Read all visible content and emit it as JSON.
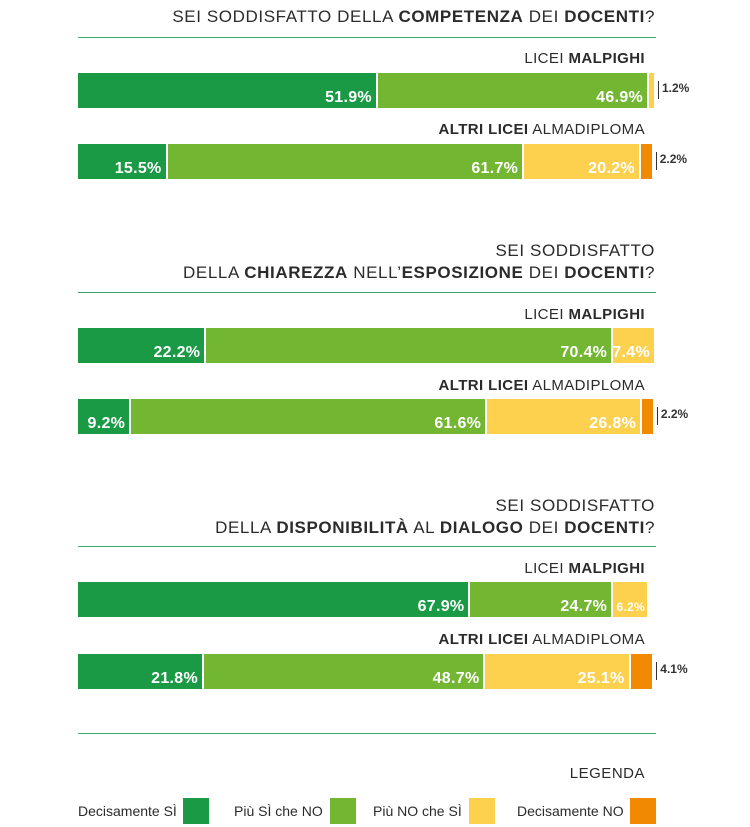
{
  "colors": {
    "decisamente_si": "#1a9a45",
    "piu_si": "#72b632",
    "piu_no": "#fdd04e",
    "decisamente_no": "#f18a00",
    "rule": "#3aa86b"
  },
  "chart_data": {
    "type": "bar",
    "orientation": "horizontal-stacked-100",
    "categories_order": [
      "Decisamente SÌ",
      "Più SÌ che NO",
      "Più NO che SÌ",
      "Decisamente NO"
    ],
    "charts": [
      {
        "title_line1": "",
        "title_parts": [
          {
            "t": "SEI SODDISFATTO DELLA ",
            "b": false
          },
          {
            "t": "COMPETENZA",
            "b": true
          },
          {
            "t": " DEI ",
            "b": false
          },
          {
            "t": "DOCENTI",
            "b": true
          },
          {
            "t": "?",
            "b": false
          }
        ],
        "groups": [
          {
            "label_bold_first": false,
            "label_a": "LICEI ",
            "label_b": "MALPIGHI",
            "values": [
              51.9,
              46.9,
              1.2,
              0
            ],
            "labels": [
              "51.9%",
              "46.9%",
              "1.2%",
              ""
            ]
          },
          {
            "label_bold_first": true,
            "label_a": "ALTRI LICEI",
            "label_b": " ALMADIPLOMA",
            "values": [
              15.5,
              61.7,
              20.2,
              2.2
            ],
            "labels": [
              "15.5%",
              "61.7%",
              "20.2%",
              "2.2%"
            ]
          }
        ]
      },
      {
        "title_line1": "SEI SODDISFATTO",
        "title_parts": [
          {
            "t": "DELLA ",
            "b": false
          },
          {
            "t": "CHIAREZZA",
            "b": true
          },
          {
            "t": " NELL’",
            "b": false
          },
          {
            "t": "ESPOSIZIONE",
            "b": true
          },
          {
            "t": " DEI ",
            "b": false
          },
          {
            "t": "DOCENTI",
            "b": true
          },
          {
            "t": "?",
            "b": false
          }
        ],
        "groups": [
          {
            "label_bold_first": false,
            "label_a": "LICEI ",
            "label_b": "MALPIGHI",
            "values": [
              22.2,
              70.4,
              7.4,
              0
            ],
            "labels": [
              "22.2%",
              "70.4%",
              "7.4%",
              ""
            ]
          },
          {
            "label_bold_first": true,
            "label_a": "ALTRI LICEI",
            "label_b": " ALMADIPLOMA",
            "values": [
              9.2,
              61.6,
              26.8,
              2.2
            ],
            "labels": [
              "9.2%",
              "61.6%",
              "26.8%",
              "2.2%"
            ]
          }
        ]
      },
      {
        "title_line1": "SEI SODDISFATTO",
        "title_parts": [
          {
            "t": "DELLA ",
            "b": false
          },
          {
            "t": "DISPONIBILITÀ",
            "b": true
          },
          {
            "t": " AL ",
            "b": false
          },
          {
            "t": "DIALOGO",
            "b": true
          },
          {
            "t": " DEI ",
            "b": false
          },
          {
            "t": "DOCENTI",
            "b": true
          },
          {
            "t": "?",
            "b": false
          }
        ],
        "groups": [
          {
            "label_bold_first": false,
            "label_a": "LICEI ",
            "label_b": "MALPIGHI",
            "values": [
              67.9,
              24.7,
              6.2,
              0
            ],
            "labels": [
              "67.9%",
              "24.7%",
              "6.2%",
              ""
            ]
          },
          {
            "label_bold_first": true,
            "label_a": "ALTRI LICEI",
            "label_b": " ALMADIPLOMA",
            "values": [
              21.8,
              48.7,
              25.1,
              4.1
            ],
            "labels": [
              "21.8%",
              "48.7%",
              "25.1%",
              "4.1%"
            ]
          }
        ]
      }
    ]
  },
  "legend": {
    "title": "LEGENDA",
    "items": [
      {
        "label": "Decisamente SÌ",
        "color_key": "decisamente_si"
      },
      {
        "label": "Più SÌ che NO",
        "color_key": "piu_si"
      },
      {
        "label": "Più NO che SÌ",
        "color_key": "piu_no"
      },
      {
        "label": "Decisamente NO",
        "color_key": "decisamente_no"
      }
    ]
  }
}
